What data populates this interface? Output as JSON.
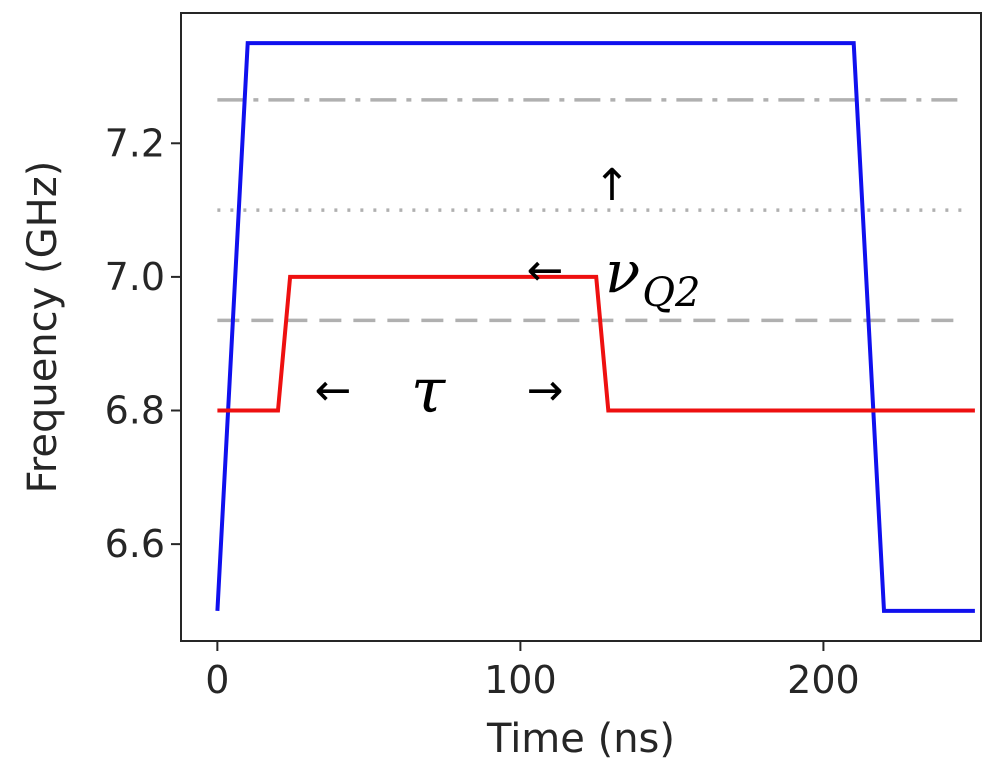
{
  "chart_data": {
    "type": "line",
    "xlabel": "Time (ns)",
    "ylabel": "Frequency (GHz)",
    "xlim": [
      -12,
      252
    ],
    "ylim": [
      6.455,
      7.395
    ],
    "xticks": [
      0,
      100,
      200
    ],
    "xtick_labels": [
      "0",
      "100",
      "200"
    ],
    "yticks": [
      6.6,
      6.8,
      7.0,
      7.2
    ],
    "ytick_labels": [
      "6.6",
      "6.8",
      "7.0",
      "7.2"
    ],
    "grid": false,
    "series": [
      {
        "color": "#1010ee",
        "x": [
          0,
          10,
          210,
          220,
          250
        ],
        "y": [
          6.5,
          7.35,
          7.35,
          6.5,
          6.5
        ]
      },
      {
        "color": "#ee1010",
        "x": [
          0,
          20,
          24,
          125,
          129,
          250
        ],
        "y": [
          6.8,
          6.8,
          7.0,
          7.0,
          6.8,
          6.8
        ]
      }
    ],
    "reference_lines": [
      {
        "y": 7.265,
        "style": "dashdot",
        "color": "#b0b0b0",
        "xmin": 0,
        "xmax": 246
      },
      {
        "y": 7.1,
        "style": "dotted",
        "color": "#b0b0b0",
        "xmin": 0,
        "xmax": 246
      },
      {
        "y": 6.935,
        "style": "dashed",
        "color": "#b0b0b0",
        "xmin": 0,
        "xmax": 246
      }
    ],
    "annotations": {
      "up_arrow": "↑",
      "left_arrow_nu": "←",
      "nu_symbol": "ν",
      "nu_subscript": "Q2",
      "tau_left_arrow": "←",
      "tau_symbol": "τ",
      "tau_right_arrow": "→"
    }
  }
}
